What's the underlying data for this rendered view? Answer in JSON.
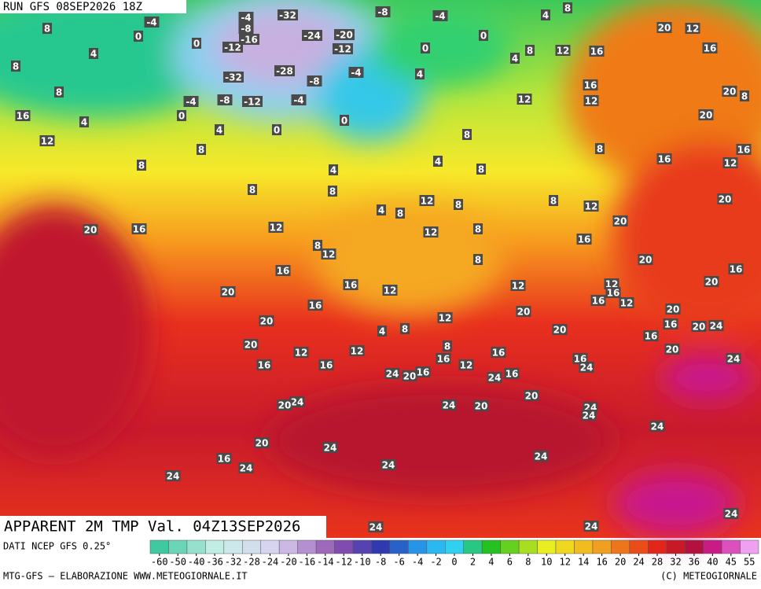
{
  "header": {
    "run": "RUN GFS 08SEP2026 18Z",
    "product": "APPARENT 2M TMP Val. 04Z13SEP2026"
  },
  "legend": {
    "source": "DATI NCEP GFS 0.25°",
    "ticks": [
      -60,
      -50,
      -40,
      -36,
      -32,
      -28,
      -24,
      -20,
      -16,
      -14,
      -12,
      -10,
      -8,
      -6,
      -4,
      -2,
      0,
      2,
      4,
      6,
      8,
      10,
      12,
      14,
      16,
      20,
      24,
      28,
      32,
      36,
      40,
      45,
      55
    ]
  },
  "footer": {
    "credit": "MTG-GFS — ELABORAZIONE WWW.METEOGIORNALE.IT",
    "copyright": "(C) METEOGIORNALE"
  },
  "map": {
    "labels": [
      -4,
      8,
      0,
      0,
      -12,
      -16,
      -8,
      -4,
      -32,
      -24,
      -20,
      -12,
      -8,
      -4,
      0,
      0,
      4,
      8,
      8,
      4,
      16,
      12,
      -32,
      -28,
      -8,
      -4,
      4,
      -4,
      -8,
      -12,
      -4,
      0,
      0,
      4,
      0,
      8,
      8,
      4,
      8,
      8,
      4,
      8,
      12,
      8,
      4,
      8,
      8,
      8,
      8,
      12,
      12,
      12,
      16,
      12,
      16,
      8,
      4,
      4,
      8,
      20,
      12,
      16,
      20,
      8,
      20,
      16,
      16,
      12,
      20,
      20,
      16,
      20,
      16,
      20,
      12,
      16,
      12,
      16,
      20,
      16,
      20,
      24,
      16,
      20,
      24,
      16,
      24,
      20,
      20,
      12,
      8,
      8,
      12,
      12,
      20,
      16,
      8,
      12,
      16,
      16,
      12,
      20,
      16,
      20,
      12,
      20,
      12,
      4,
      8,
      12,
      8,
      16,
      16,
      16,
      16,
      12,
      24,
      20,
      16,
      24,
      16,
      20,
      24,
      20,
      24,
      20,
      24,
      24,
      24,
      20,
      24,
      16,
      24,
      24,
      24,
      24,
      24,
      24,
      24
    ]
  }
}
